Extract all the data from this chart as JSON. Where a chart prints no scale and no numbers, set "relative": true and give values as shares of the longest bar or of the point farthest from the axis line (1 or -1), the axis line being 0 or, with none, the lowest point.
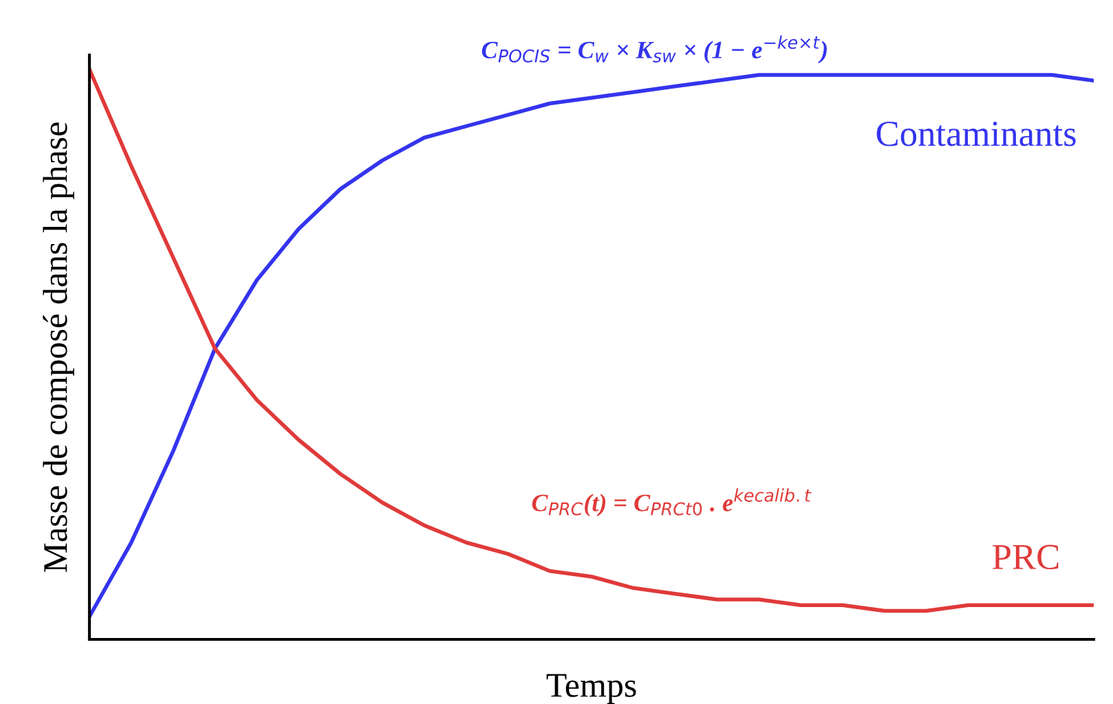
{
  "chart_data": {
    "type": "line",
    "relative": true,
    "xlabel": "Temps",
    "ylabel": "Masse de composé dans la phase",
    "categories": [
      null,
      null,
      null,
      null,
      null,
      null,
      null,
      null,
      null,
      null,
      null,
      null,
      null,
      null,
      null,
      null,
      null,
      null,
      null,
      null,
      null,
      null,
      null,
      null,
      null
    ],
    "series": [
      {
        "name": "Contaminants",
        "color": "#3434ee",
        "values": [
          0.04,
          0.17,
          0.33,
          0.51,
          0.63,
          0.72,
          0.79,
          0.84,
          0.88,
          0.9,
          0.92,
          0.94,
          0.95,
          0.96,
          0.97,
          0.98,
          0.99,
          0.99,
          0.99,
          0.99,
          0.99,
          0.99,
          0.99,
          0.99,
          0.98
        ]
      },
      {
        "name": "PRC",
        "color": "#e03a3a",
        "values": [
          1,
          0.83,
          0.67,
          0.51,
          0.42,
          0.35,
          0.29,
          0.24,
          0.2,
          0.17,
          0.15,
          0.12,
          0.11,
          0.09,
          0.08,
          0.07,
          0.07,
          0.06,
          0.06,
          0.05,
          0.05,
          0.06,
          0.06,
          0.06,
          0.06
        ]
      }
    ],
    "annotations": [
      "C$_{POCIS}$ = C$_{w}$ × K$_{sw}$ × (1 − e$^{−ke×t}$)",
      "C$_{PRC}$(t) = C$_{PRCt0}$ . e$^{kecalib.t}$"
    ],
    "grid": false,
    "legend": false,
    "marker": "none",
    "line_style": "solid"
  }
}
